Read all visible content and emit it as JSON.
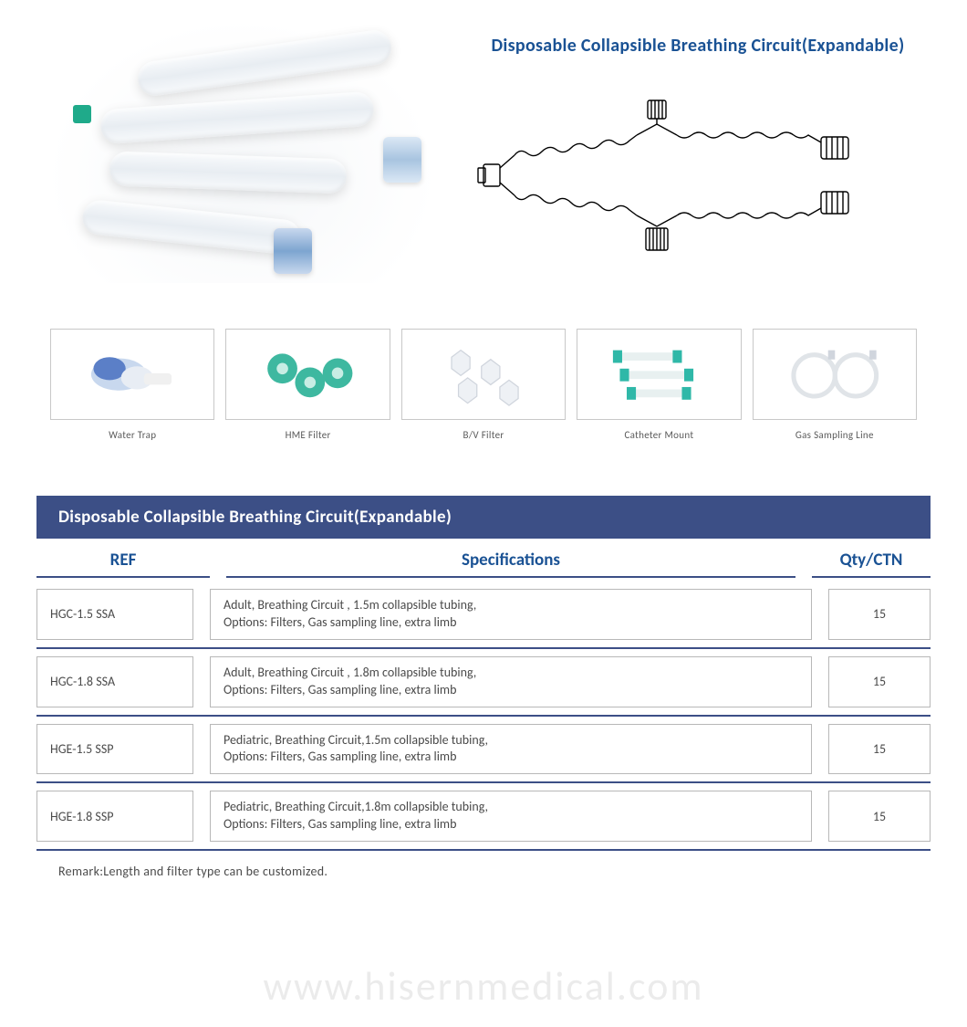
{
  "title": "Disposable Collapsible Breathing Circuit(Expandable)",
  "colors": {
    "brand_blue": "#1a5294",
    "bar_blue": "#3c4f86",
    "border_gray": "#b8b8b8",
    "text_gray": "#4a4a4a",
    "thumb_border": "#c8c8c8",
    "teal": "#1faa8a",
    "light_blue": "#a8c4e0"
  },
  "thumbs": [
    {
      "label": "Water Trap"
    },
    {
      "label": "HME Filter"
    },
    {
      "label": "B/V Filter"
    },
    {
      "label": "Catheter Mount"
    },
    {
      "label": "Gas Sampling Line"
    }
  ],
  "table": {
    "title": "Disposable Collapsible Breathing Circuit(Expandable)",
    "headers": {
      "ref": "REF",
      "spec": "Specifications",
      "qty": "Qty/CTN"
    },
    "rows": [
      {
        "ref": "HGC-1.5 SSA",
        "spec": "Adult, Breathing Circuit , 1.5m collapsible tubing,\nOptions: Filters, Gas sampling line, extra limb",
        "qty": "15"
      },
      {
        "ref": "HGC-1.8 SSA",
        "spec": "Adult, Breathing Circuit , 1.8m collapsible tubing,\nOptions: Filters, Gas sampling line, extra limb",
        "qty": "15"
      },
      {
        "ref": "HGE-1.5 SSP",
        "spec": "Pediatric, Breathing Circuit,1.5m collapsible tubing,\nOptions: Filters, Gas sampling line, extra limb",
        "qty": "15"
      },
      {
        "ref": "HGE-1.8 SSP",
        "spec": "Pediatric, Breathing Circuit,1.8m collapsible tubing,\nOptions: Filters, Gas sampling line, extra limb",
        "qty": "15"
      }
    ],
    "remark": "Remark:Length and filter type can be customized."
  },
  "watermark": "www.hisernmedical.com"
}
